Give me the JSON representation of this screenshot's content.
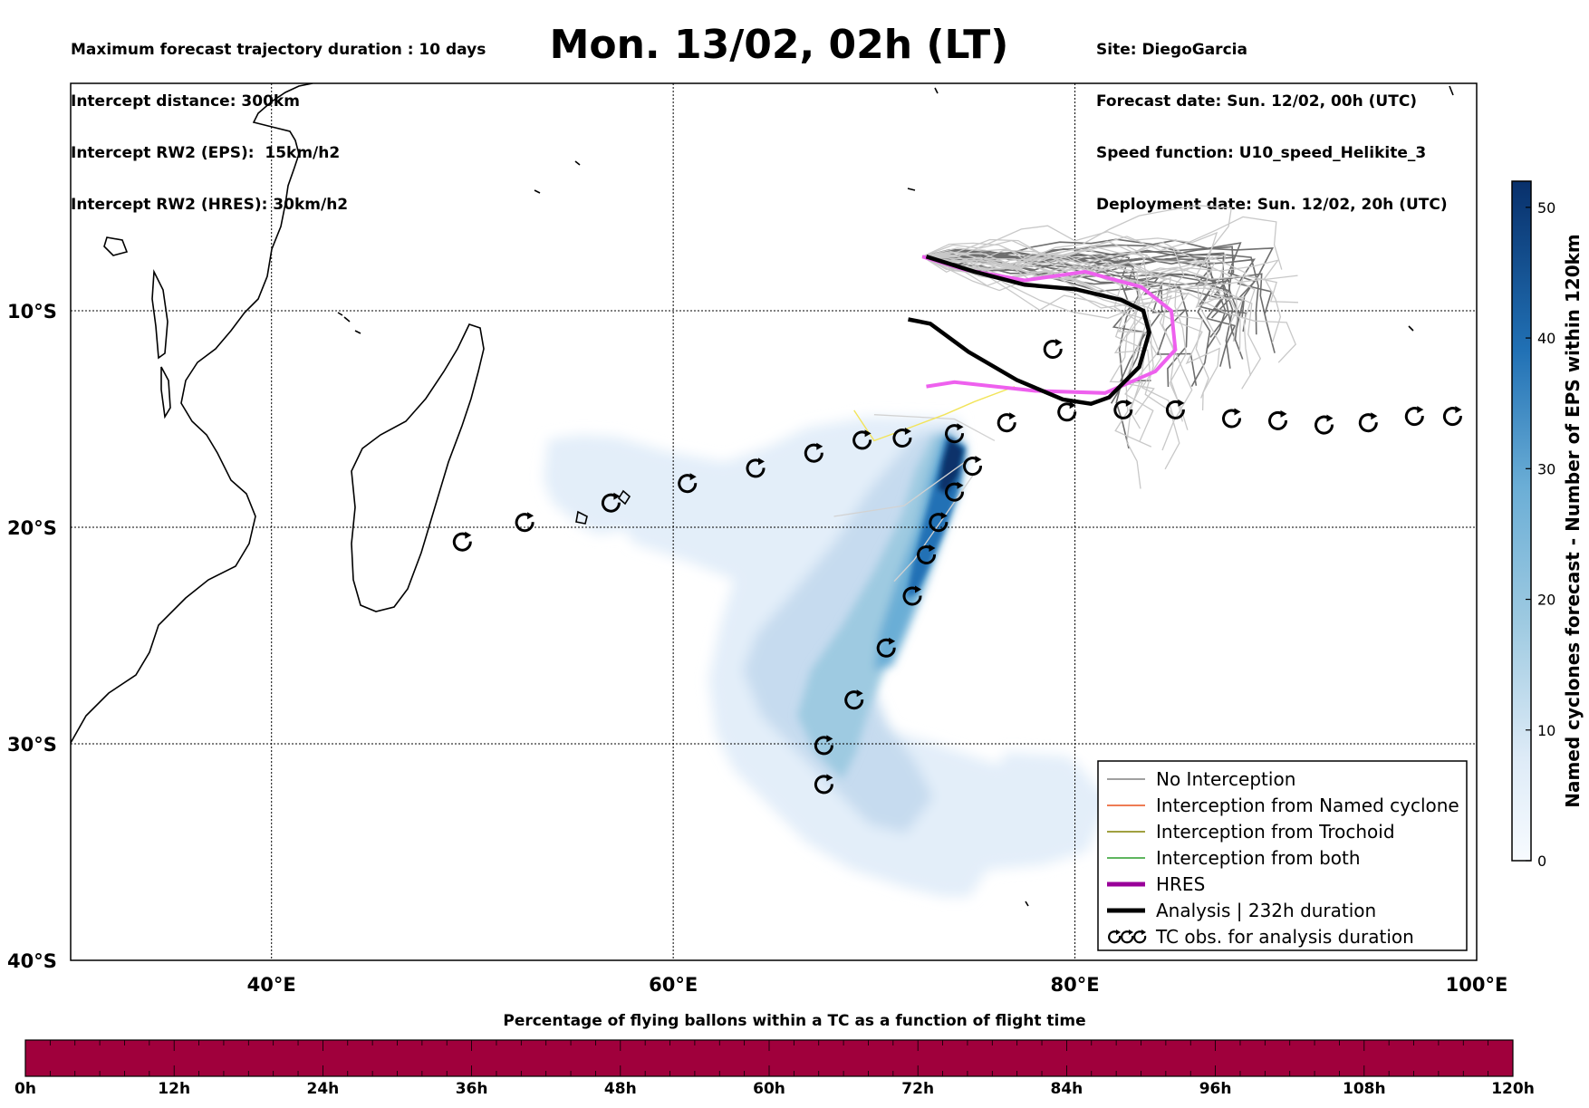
{
  "header_left": {
    "line1": "Maximum forecast trajectory duration : 10 days",
    "line2": "Intercept distance: 300km",
    "line3": "Intercept RW2 (EPS):  15km/h2",
    "line4": "Intercept RW2 (HRES): 30km/h2"
  },
  "title": "Mon. 13/02, 02h (LT)",
  "header_right": {
    "line1": "Site: DiegoGarcia",
    "line2": "Forecast date: Sun. 12/02, 00h (UTC)",
    "line3": "Speed function: U10_speed_Helikite_3",
    "line4": "Deployment date: Sun. 12/02, 20h (UTC)"
  },
  "map": {
    "lon_range": [
      30,
      100
    ],
    "lat_range": [
      -40,
      0.5
    ],
    "lon_ticks": [
      40,
      60,
      80,
      100
    ],
    "lon_tick_labels": [
      "40°E",
      "60°E",
      "80°E",
      "100°E"
    ],
    "lat_ticks": [
      -10,
      -20,
      -30,
      -40
    ],
    "lat_tick_labels": [
      "10°S",
      "20°S",
      "30°S",
      "40°S"
    ],
    "gridlines": true
  },
  "colorbar": {
    "label": "Named cyclones forecast - Number of EPS within 120km",
    "range": [
      0,
      52
    ],
    "ticks": [
      0,
      10,
      20,
      30,
      40,
      50
    ],
    "tick_labels": [
      "0",
      "10",
      "20",
      "30",
      "40",
      "50"
    ],
    "colormap": "Blues"
  },
  "legend": {
    "placement": "bottom-right",
    "items": [
      {
        "label": "No Interception",
        "color": "#808080",
        "style": "thin"
      },
      {
        "label": "Interception from Named cyclone",
        "color": "#e8501b",
        "style": "thin"
      },
      {
        "label": "Interception from Trochoid",
        "color": "#808000",
        "style": "thin"
      },
      {
        "label": "Interception from both",
        "color": "#2a9d2a",
        "style": "thin"
      },
      {
        "label": "HRES",
        "color": "#990099",
        "style": "thick"
      },
      {
        "label": "Analysis | 232h duration",
        "color": "#000000",
        "style": "thick"
      },
      {
        "label": "TC obs. for analysis duration",
        "color": "#000000",
        "style": "markers"
      }
    ]
  },
  "tc_observations": [
    {
      "lon": 49.5,
      "lat": -20.7
    },
    {
      "lon": 52.6,
      "lat": -19.8
    },
    {
      "lon": 56.9,
      "lat": -18.9
    },
    {
      "lon": 60.7,
      "lat": -18.0
    },
    {
      "lon": 64.1,
      "lat": -17.3
    },
    {
      "lon": 67.0,
      "lat": -16.6
    },
    {
      "lon": 69.4,
      "lat": -16.0
    },
    {
      "lon": 71.4,
      "lat": -15.9
    },
    {
      "lon": 74.0,
      "lat": -15.7
    },
    {
      "lon": 76.6,
      "lat": -15.2
    },
    {
      "lon": 79.6,
      "lat": -14.7
    },
    {
      "lon": 82.4,
      "lat": -14.6
    },
    {
      "lon": 85.0,
      "lat": -14.6
    },
    {
      "lon": 87.8,
      "lat": -15.0
    },
    {
      "lon": 90.1,
      "lat": -15.1
    },
    {
      "lon": 92.4,
      "lat": -15.3
    },
    {
      "lon": 94.6,
      "lat": -15.2
    },
    {
      "lon": 96.9,
      "lat": -14.9
    },
    {
      "lon": 98.8,
      "lat": -14.9
    },
    {
      "lon": 78.9,
      "lat": -11.8
    },
    {
      "lon": 74.9,
      "lat": -17.2
    },
    {
      "lon": 74.0,
      "lat": -18.4
    },
    {
      "lon": 73.2,
      "lat": -19.8
    },
    {
      "lon": 72.6,
      "lat": -21.3
    },
    {
      "lon": 71.9,
      "lat": -23.2
    },
    {
      "lon": 70.6,
      "lat": -25.6
    },
    {
      "lon": 69.0,
      "lat": -28.0
    },
    {
      "lon": 67.5,
      "lat": -30.1
    },
    {
      "lon": 67.5,
      "lat": -31.9
    }
  ],
  "hres_track": [
    {
      "lon": 72.4,
      "lat": -7.5
    },
    {
      "lon": 74.5,
      "lat": -8.1
    },
    {
      "lon": 77.5,
      "lat": -8.6
    },
    {
      "lon": 80.5,
      "lat": -8.2
    },
    {
      "lon": 83.3,
      "lat": -8.9
    },
    {
      "lon": 84.8,
      "lat": -10.0
    },
    {
      "lon": 85.0,
      "lat": -11.8
    },
    {
      "lon": 84.0,
      "lat": -12.8
    },
    {
      "lon": 81.5,
      "lat": -13.8
    },
    {
      "lon": 78.0,
      "lat": -13.7
    },
    {
      "lon": 74.0,
      "lat": -13.3
    },
    {
      "lon": 72.6,
      "lat": -13.5
    }
  ],
  "analysis_track": [
    {
      "lon": 71.7,
      "lat": -10.4
    },
    {
      "lon": 72.8,
      "lat": -10.6
    },
    {
      "lon": 74.7,
      "lat": -11.9
    },
    {
      "lon": 77.1,
      "lat": -13.2
    },
    {
      "lon": 79.4,
      "lat": -14.1
    },
    {
      "lon": 80.8,
      "lat": -14.3
    },
    {
      "lon": 81.7,
      "lat": -14.0
    },
    {
      "lon": 83.2,
      "lat": -12.6
    },
    {
      "lon": 83.7,
      "lat": -11.0
    },
    {
      "lon": 83.4,
      "lat": -10.0
    },
    {
      "lon": 82.3,
      "lat": -9.5
    },
    {
      "lon": 80.0,
      "lat": -9.0
    },
    {
      "lon": 77.5,
      "lat": -8.8
    },
    {
      "lon": 75.0,
      "lat": -8.2
    },
    {
      "lon": 72.6,
      "lat": -7.5
    }
  ],
  "pct_bar": {
    "title": "Percentage of flying ballons within a TC as a function of flight time",
    "fill_color": "#a0003c",
    "tick_labels": [
      "0h",
      "12h",
      "24h",
      "36h",
      "48h",
      "60h",
      "72h",
      "84h",
      "96h",
      "108h",
      "120h"
    ]
  }
}
